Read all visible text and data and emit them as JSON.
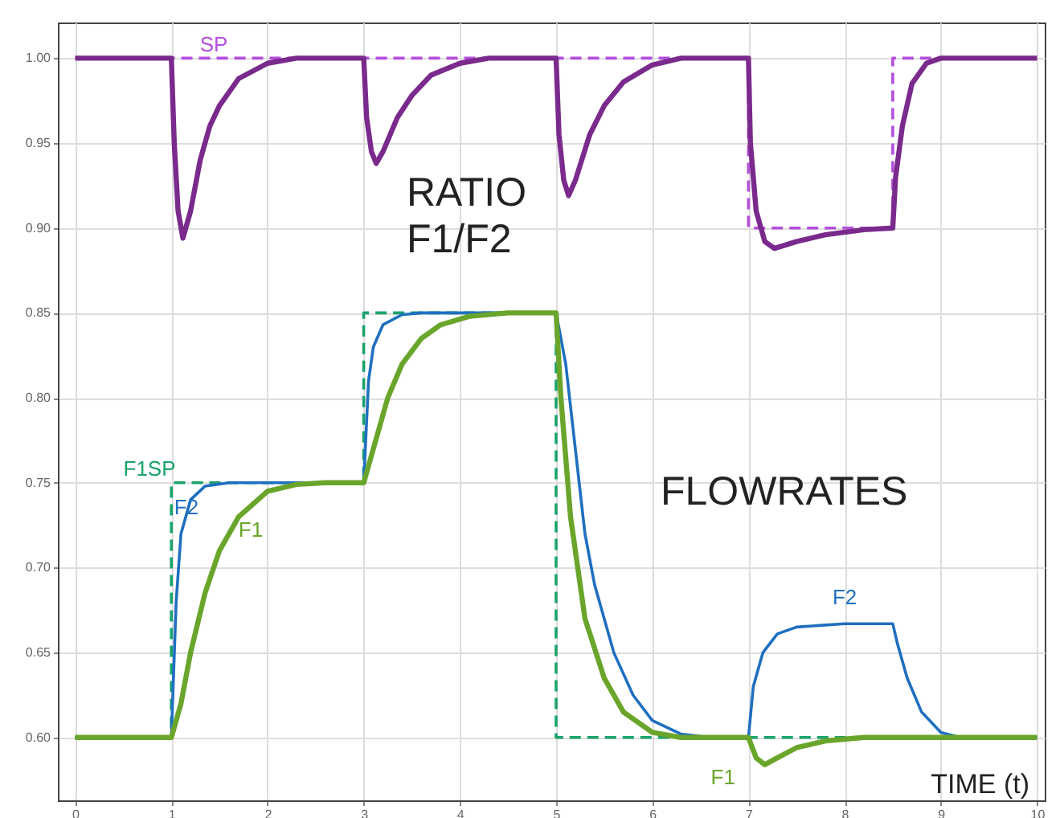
{
  "chart_data": {
    "type": "line",
    "xlabel": "TIME (t)",
    "xlim": [
      -0.18,
      10.08
    ],
    "ylim": [
      0.563,
      1.021
    ],
    "xticks": [
      0,
      1,
      2,
      3,
      4,
      5,
      6,
      7,
      8,
      9,
      10
    ],
    "yticks": [
      {
        "value": 0.6,
        "label": "0.60"
      },
      {
        "value": 0.65,
        "label": "0.65"
      },
      {
        "value": 0.7,
        "label": "0.70"
      },
      {
        "value": 0.75,
        "label": "0.75"
      },
      {
        "value": 0.8,
        "label": "0.80"
      },
      {
        "value": 0.85,
        "label": "0.85"
      },
      {
        "value": 0.9,
        "label": "0.90"
      },
      {
        "value": 0.95,
        "label": "0.95"
      },
      {
        "value": 1.0,
        "label": "1.00"
      }
    ],
    "grid": true,
    "marker": "none",
    "series": [
      {
        "name": "SP",
        "color": "#b44fdc",
        "line_style": "dashed",
        "x": [
          0,
          7,
          7,
          8.5,
          8.5,
          10
        ],
        "values": [
          1,
          1,
          0.9,
          0.9,
          1,
          1
        ]
      },
      {
        "color": "#7a2a8c",
        "line_style": "solid",
        "x": [
          0,
          1,
          1.03,
          1.07,
          1.12,
          1.2,
          1.3,
          1.4,
          1.5,
          1.7,
          2.0,
          2.3,
          3,
          3.03,
          3.08,
          3.13,
          3.2,
          3.35,
          3.5,
          3.7,
          4.0,
          4.3,
          5,
          5.03,
          5.08,
          5.13,
          5.2,
          5.35,
          5.5,
          5.7,
          6.0,
          6.3,
          7,
          7.02,
          7.08,
          7.17,
          7.27,
          7.5,
          7.8,
          8.2,
          8.5,
          8.53,
          8.6,
          8.7,
          8.85,
          9.0,
          10
        ],
        "values": [
          1,
          1,
          0.95,
          0.91,
          0.894,
          0.91,
          0.94,
          0.96,
          0.972,
          0.988,
          0.997,
          1,
          1,
          0.965,
          0.945,
          0.938,
          0.945,
          0.965,
          0.978,
          0.99,
          0.997,
          1,
          1,
          0.955,
          0.928,
          0.919,
          0.928,
          0.955,
          0.972,
          0.986,
          0.996,
          1,
          1,
          0.95,
          0.91,
          0.892,
          0.888,
          0.892,
          0.896,
          0.899,
          0.9,
          0.93,
          0.96,
          0.985,
          0.997,
          1,
          1
        ]
      },
      {
        "name": "F1SP",
        "color": "#1aa36b",
        "line_style": "dashed",
        "x": [
          0,
          1,
          1,
          3,
          3,
          5,
          5,
          10
        ],
        "values": [
          0.6,
          0.6,
          0.75,
          0.75,
          0.85,
          0.85,
          0.6,
          0.6
        ]
      },
      {
        "name": "F2",
        "color": "#1f6fc0",
        "line_style": "solid",
        "x": [
          0,
          1,
          1.05,
          1.1,
          1.2,
          1.35,
          1.6,
          3,
          3.05,
          3.1,
          3.2,
          3.4,
          3.6,
          5,
          5.1,
          5.2,
          5.3,
          5.4,
          5.6,
          5.8,
          6.0,
          6.3,
          6.6,
          7,
          7.05,
          7.15,
          7.3,
          7.5,
          8.0,
          8.5,
          8.55,
          8.65,
          8.8,
          9.0,
          9.2,
          10
        ],
        "values": [
          0.6,
          0.6,
          0.68,
          0.72,
          0.74,
          0.748,
          0.75,
          0.75,
          0.81,
          0.83,
          0.843,
          0.849,
          0.85,
          0.85,
          0.82,
          0.77,
          0.72,
          0.69,
          0.65,
          0.625,
          0.61,
          0.602,
          0.6,
          0.6,
          0.63,
          0.65,
          0.661,
          0.665,
          0.667,
          0.667,
          0.655,
          0.635,
          0.615,
          0.603,
          0.6,
          0.6
        ]
      },
      {
        "name": "F1",
        "color": "#6aa52b",
        "line_style": "solid",
        "x": [
          0,
          1,
          1.1,
          1.2,
          1.35,
          1.5,
          1.7,
          2.0,
          2.3,
          2.6,
          3,
          3.1,
          3.25,
          3.4,
          3.6,
          3.8,
          4.1,
          4.5,
          5,
          5.05,
          5.15,
          5.3,
          5.5,
          5.7,
          6.0,
          6.3,
          7,
          7.08,
          7.17,
          7.3,
          7.5,
          7.8,
          8.2,
          10
        ],
        "values": [
          0.6,
          0.6,
          0.62,
          0.65,
          0.685,
          0.71,
          0.73,
          0.745,
          0.749,
          0.75,
          0.75,
          0.77,
          0.8,
          0.82,
          0.835,
          0.843,
          0.848,
          0.85,
          0.85,
          0.8,
          0.73,
          0.67,
          0.635,
          0.615,
          0.603,
          0.6,
          0.6,
          0.588,
          0.584,
          0.588,
          0.594,
          0.598,
          0.6,
          0.6
        ]
      }
    ],
    "annotations": [
      "RATIO\nF1/F2",
      "FLOWRATES",
      {
        "text": "F2",
        "x": 8.0,
        "y": 0.667
      },
      {
        "text": "F1",
        "x": 7.17,
        "y": 0.584
      }
    ]
  }
}
